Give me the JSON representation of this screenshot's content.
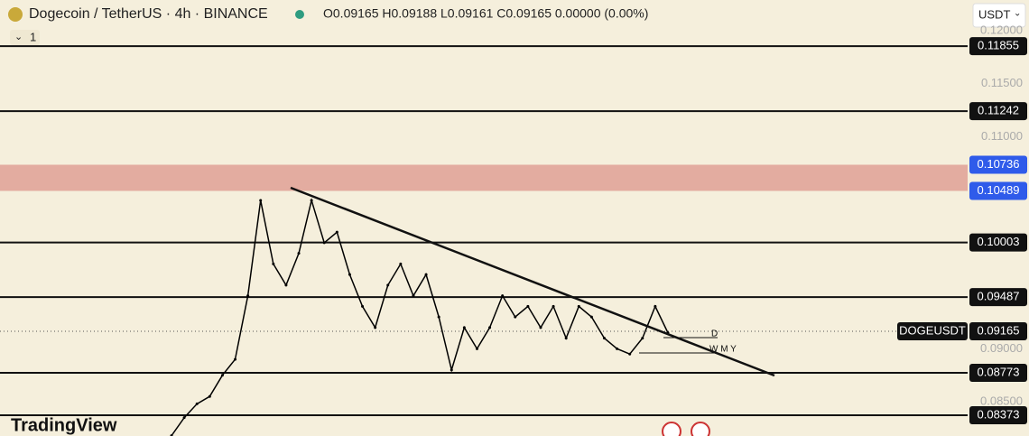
{
  "header": {
    "symbol": "Dogecoin / TetherUS · 4h · BINANCE",
    "ohlc": "O0.09165 H0.09188 L0.09161 C0.09165 0.00000 (0.00%)",
    "interval_count": "1",
    "currency": "USDT"
  },
  "brand": "TradingView",
  "chart_data": {
    "type": "line",
    "color": "#000000",
    "values": [
      0.0818,
      0.0835,
      0.0848,
      0.0855,
      0.0875,
      0.089,
      0.095,
      0.104,
      0.098,
      0.096,
      0.099,
      0.104,
      0.1,
      0.101,
      0.097,
      0.094,
      0.092,
      0.096,
      0.098,
      0.095,
      0.097,
      0.093,
      0.088,
      0.092,
      0.09,
      0.092,
      0.095,
      0.093,
      0.094,
      0.092,
      0.094,
      0.091,
      0.094,
      0.093,
      0.091,
      0.09,
      0.0895,
      0.091,
      0.094,
      0.0915
    ],
    "ylim": [
      0.08177,
      0.1229
    ],
    "yticks": [
      {
        "value": 0.12,
        "label": "0.12000"
      },
      {
        "value": 0.115,
        "label": "0.11500"
      },
      {
        "value": 0.11,
        "label": "0.11000"
      },
      {
        "value": 0.09,
        "label": "0.09000"
      },
      {
        "value": 0.085,
        "label": "0.08500"
      }
    ],
    "levels": [
      {
        "value": 0.11855,
        "label": "0.11855"
      },
      {
        "value": 0.11242,
        "label": "0.11242"
      },
      {
        "value": 0.10003,
        "label": "0.10003"
      },
      {
        "value": 0.09487,
        "label": "0.09487"
      },
      {
        "value": 0.08773,
        "label": "0.08773"
      },
      {
        "value": 0.08373,
        "label": "0.08373"
      }
    ],
    "zone": [
      {
        "value": 0.10736,
        "label": "0.10736"
      },
      {
        "value": 0.10489,
        "label": "0.10489"
      }
    ],
    "last_price": {
      "value": 0.09165,
      "label": "0.09165",
      "name": "DOGEUSDT"
    },
    "annotations": [
      "D",
      "W M Y"
    ]
  }
}
